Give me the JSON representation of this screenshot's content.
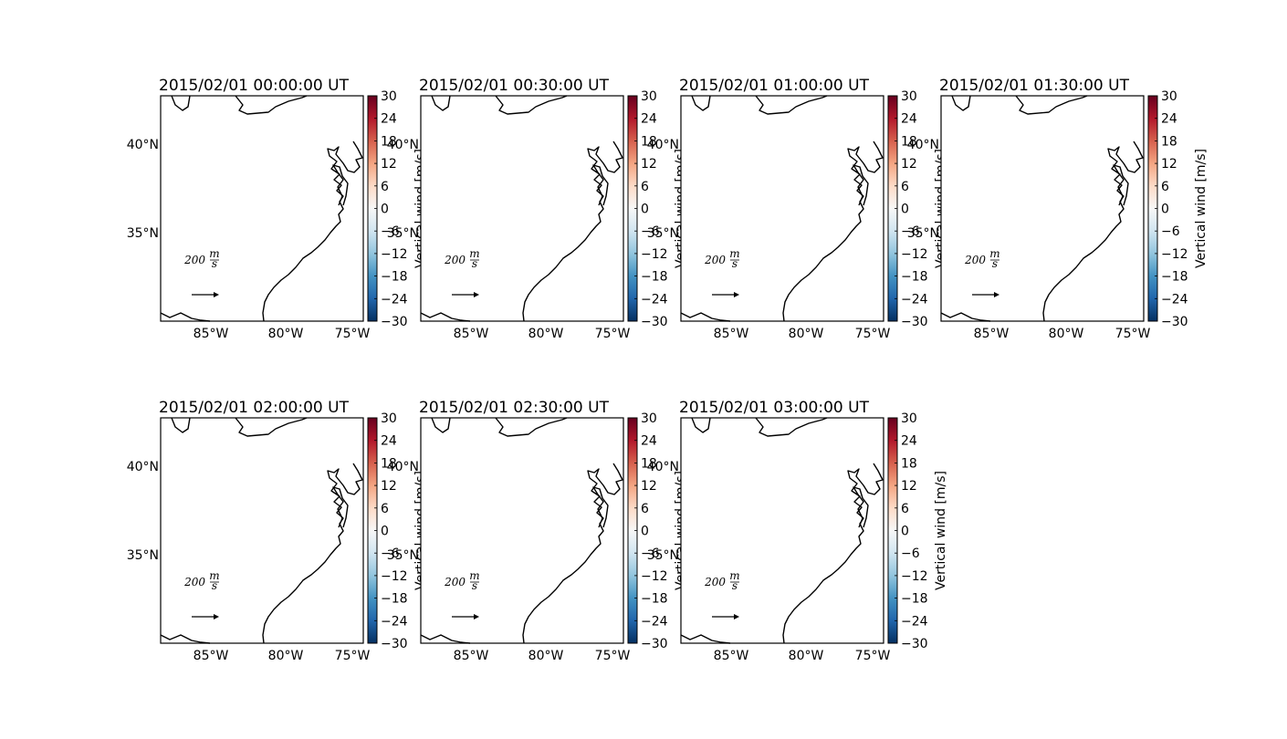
{
  "figure": {
    "panels": [
      {
        "title": "2015/02/01 00:00:00 UT",
        "colorbar_label": "Vertical wind [m/s]"
      },
      {
        "title": "2015/02/01 00:30:00 UT",
        "colorbar_label": "Vertical wind [m/s]"
      },
      {
        "title": "2015/02/01 01:00:00 UT",
        "colorbar_label": "Vertical wind [m/s]"
      },
      {
        "title": "2015/02/01 01:30:00 UT",
        "colorbar_label": "Vertical wind [m/s]"
      },
      {
        "title": "2015/02/01 02:00:00 UT",
        "colorbar_label": "Vertical wind [m/s]"
      },
      {
        "title": "2015/02/01 02:30:00 UT",
        "colorbar_label": "Vertical wind [m/s]"
      },
      {
        "title": "2015/02/01 03:00:00 UT",
        "colorbar_label": "Vertical wind [m/s]"
      }
    ],
    "lat_ticks": [
      "40°N",
      "35°N"
    ],
    "lon_ticks": [
      "85°W",
      "80°W",
      "75°W"
    ],
    "colorbar": {
      "ticks": [
        "30",
        "24",
        "18",
        "12",
        "6",
        "0",
        "−6",
        "−12",
        "−18",
        "−24",
        "−30"
      ],
      "min": -30,
      "max": 30,
      "colormap": "RdBu_r",
      "colors": [
        "#67001f",
        "#b2182b",
        "#d6604d",
        "#f4a582",
        "#fddbc7",
        "#f7f7f7",
        "#d1e5f0",
        "#92c5de",
        "#4393c3",
        "#2166ac",
        "#053061"
      ]
    },
    "quiver_key": {
      "value": "200",
      "unit_num": "m",
      "unit_den": "s"
    }
  }
}
